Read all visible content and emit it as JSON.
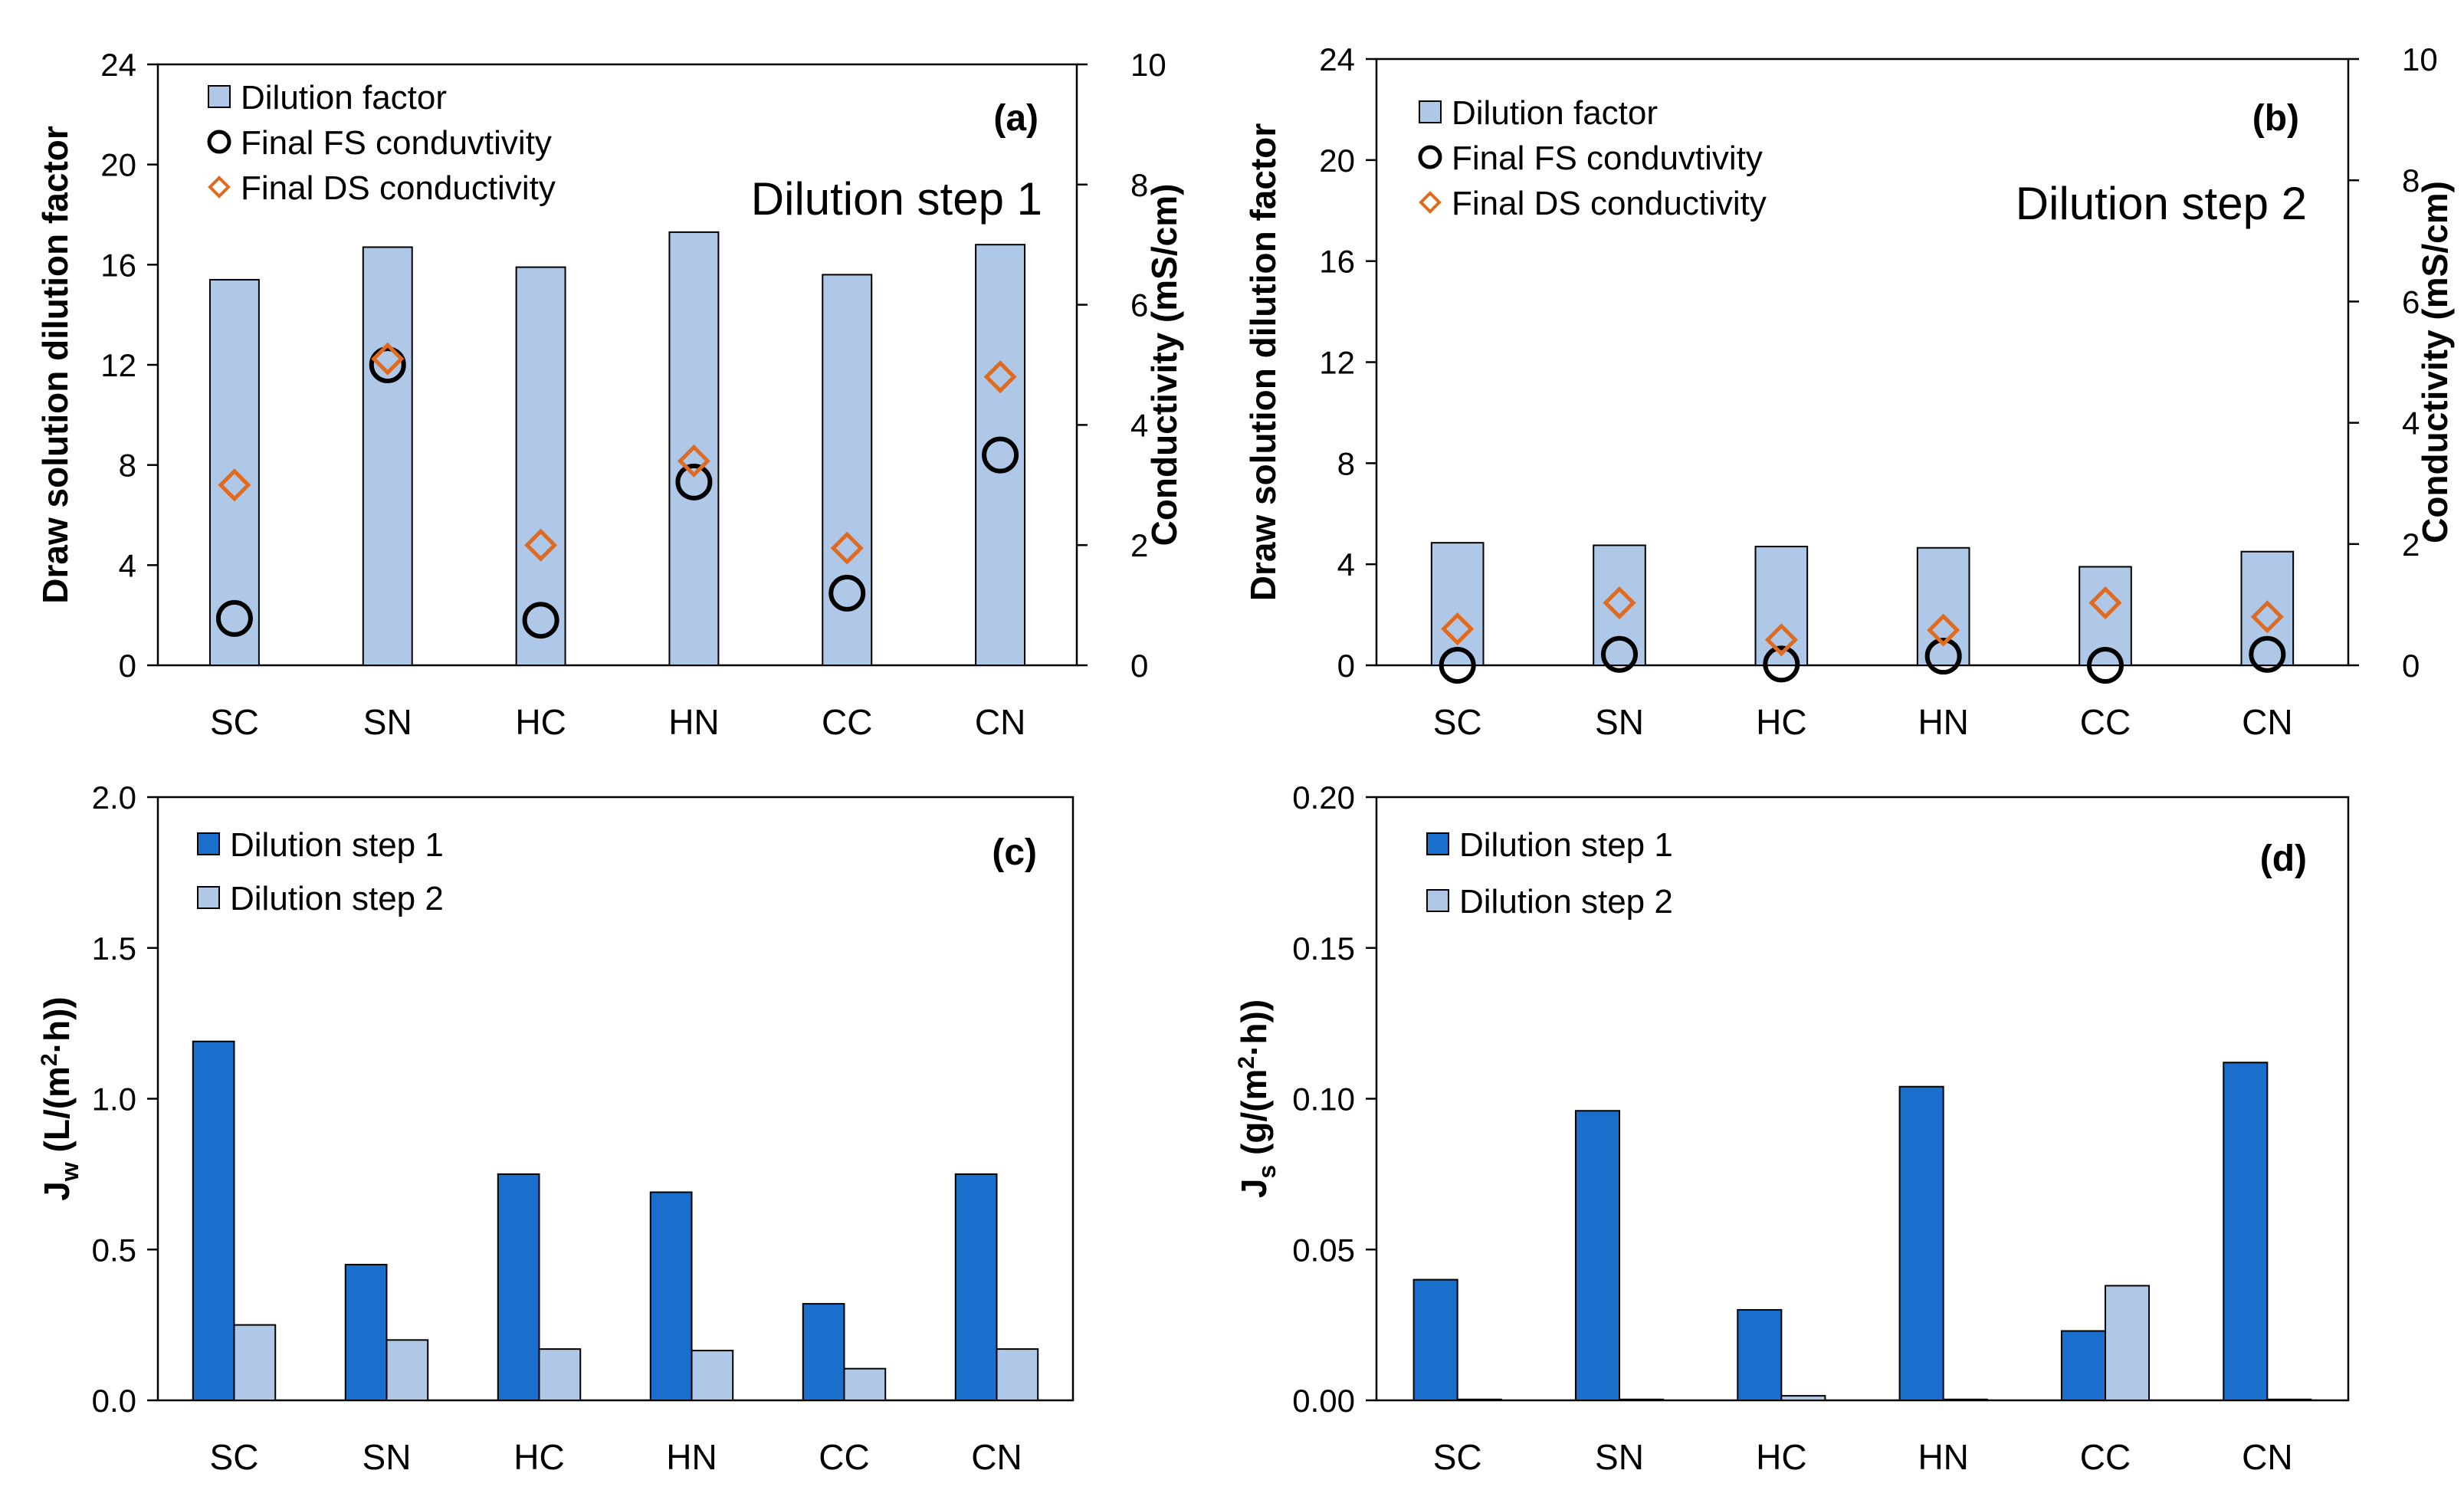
{
  "figure": {
    "panels": [
      {
        "id": "a",
        "panel_label": "(a)",
        "annotation": "Dilution step 1",
        "chart_data": {
          "type": "bar",
          "categories": [
            "SC",
            "SN",
            "HC",
            "HN",
            "CC",
            "CN"
          ],
          "ylabel": "Draw solution dilution factor",
          "y2label": "Conductivity (mS/cm)",
          "ylim": [
            0,
            24
          ],
          "yticks": [
            "0",
            "4",
            "8",
            "12",
            "16",
            "20",
            "24"
          ],
          "y2lim": [
            0,
            10
          ],
          "y2ticks": [
            "0",
            "2",
            "4",
            "6",
            "8",
            "10"
          ],
          "series": [
            {
              "name": "Dilution factor",
              "kind": "bar",
              "axis": "left",
              "color": "#b0c8e8",
              "values": [
                15.4,
                16.7,
                15.9,
                17.3,
                15.6,
                16.8
              ]
            },
            {
              "name": "Final FS conduvtivity",
              "kind": "circle",
              "axis": "right",
              "color": "#000000",
              "values": [
                0.78,
                5.0,
                0.75,
                3.05,
                1.2,
                3.5
              ]
            },
            {
              "name": "Final DS conductivity",
              "kind": "diamond",
              "axis": "right",
              "color": "#e06a1e",
              "values": [
                3.0,
                5.1,
                2.0,
                3.4,
                1.95,
                4.8
              ]
            }
          ]
        }
      },
      {
        "id": "b",
        "panel_label": "(b)",
        "annotation": "Dilution step 2",
        "chart_data": {
          "type": "bar",
          "categories": [
            "SC",
            "SN",
            "HC",
            "HN",
            "CC",
            "CN"
          ],
          "ylabel": "Draw solution dilution factor",
          "y2label": "Conductivity (mS/cm)",
          "ylim": [
            0,
            24
          ],
          "yticks": [
            "0",
            "4",
            "8",
            "12",
            "16",
            "20",
            "24"
          ],
          "y2lim": [
            0,
            10
          ],
          "y2ticks": [
            "0",
            "2",
            "4",
            "6",
            "8",
            "10"
          ],
          "series": [
            {
              "name": "Dilution factor",
              "kind": "bar",
              "axis": "left",
              "color": "#b0c8e8",
              "values": [
                4.85,
                4.75,
                4.7,
                4.65,
                3.9,
                4.5
              ]
            },
            {
              "name": "Final FS conduvtivity",
              "kind": "circle",
              "axis": "right",
              "color": "#000000",
              "values": [
                0.0,
                0.18,
                0.02,
                0.15,
                0.0,
                0.18
              ]
            },
            {
              "name": "Final DS conductivity",
              "kind": "diamond",
              "axis": "right",
              "color": "#e06a1e",
              "values": [
                0.6,
                1.03,
                0.42,
                0.58,
                1.03,
                0.8
              ]
            }
          ]
        }
      },
      {
        "id": "c",
        "panel_label": "(c)",
        "annotation": "",
        "chart_data": {
          "type": "bar",
          "categories": [
            "SC",
            "SN",
            "HC",
            "HN",
            "CC",
            "CN"
          ],
          "ylabel": "Jw (L/(m2·h))",
          "ylabel_parts": {
            "main": "J",
            "sub": "w",
            "mid": " (L/(m",
            "sup": "2",
            "end": "·h))"
          },
          "ylim": [
            0,
            2.0
          ],
          "yticks": [
            "0.0",
            "0.5",
            "1.0",
            "1.5",
            "2.0"
          ],
          "series": [
            {
              "name": "Dilution step 1",
              "kind": "bar",
              "color": "#1a6fcc",
              "values": [
                1.19,
                0.45,
                0.75,
                0.69,
                0.32,
                0.75
              ]
            },
            {
              "name": "Dilution step 2",
              "kind": "bar",
              "color": "#b0c8e8",
              "values": [
                0.25,
                0.2,
                0.17,
                0.165,
                0.105,
                0.17
              ]
            }
          ]
        }
      },
      {
        "id": "d",
        "panel_label": "(d)",
        "annotation": "",
        "chart_data": {
          "type": "bar",
          "categories": [
            "SC",
            "SN",
            "HC",
            "HN",
            "CC",
            "CN"
          ],
          "ylabel": "Js (g/(m2·h))",
          "ylabel_parts": {
            "main": "J",
            "sub": "s",
            "mid": " (g/(m",
            "sup": "2",
            "end": "·h))"
          },
          "ylim": [
            0,
            0.2
          ],
          "yticks": [
            "0.00",
            "0.05",
            "0.10",
            "0.15",
            "0.20"
          ],
          "series": [
            {
              "name": "Dilution step 1",
              "kind": "bar",
              "color": "#1a6fcc",
              "values": [
                0.04,
                0.096,
                0.03,
                0.104,
                0.023,
                0.112
              ]
            },
            {
              "name": "Dilution step 2",
              "kind": "bar",
              "color": "#b0c8e8",
              "values": [
                0.0003,
                0.0003,
                0.0015,
                0.0003,
                0.038,
                0.0003
              ]
            }
          ]
        }
      }
    ]
  }
}
